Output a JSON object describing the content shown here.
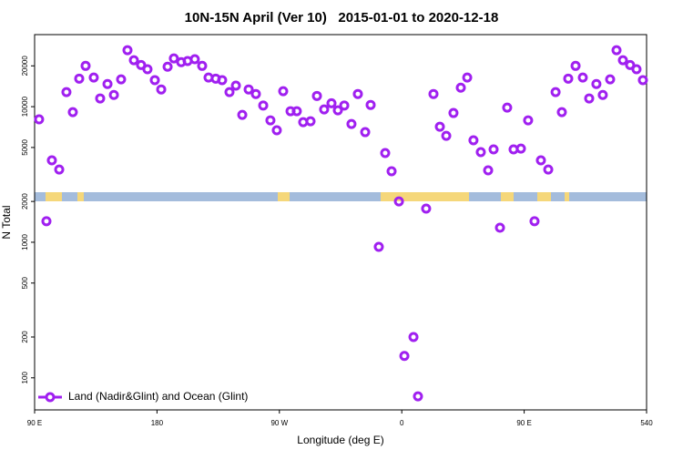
{
  "chart_data": {
    "type": "scatter",
    "title": "10N-15N April (Ver 10)   2015-01-01 to 2020-12-18",
    "x_label": "Longitude (deg E)",
    "y_label": "N Total",
    "ylog": true,
    "legend": "bottom-left",
    "xlim": [
      90,
      540
    ],
    "ylim": [
      58,
      34000
    ],
    "xticks": [
      {
        "value": 90,
        "label": "90 E"
      },
      180,
      {
        "value": 270,
        "label": "90 W"
      },
      {
        "value": 360,
        "label": "0"
      },
      {
        "value": 450,
        "label": "90 E"
      },
      540
    ],
    "yticks": [
      100,
      200,
      500,
      1000,
      2000,
      5000,
      10000,
      20000
    ],
    "x": [
      93.3,
      98.7,
      102.7,
      108.1,
      113.4,
      118.1,
      122.8,
      127.5,
      133.5,
      138.2,
      143.6,
      148.3,
      153.6,
      158.3,
      163,
      168.3,
      173,
      178.4,
      183.1,
      187.8,
      192.4,
      197.8,
      202.5,
      207.8,
      213.2,
      217.9,
      223.2,
      227.9,
      233.3,
      238,
      242.7,
      247.4,
      252.7,
      258.1,
      263.4,
      268.1,
      272.8,
      278.2,
      282.8,
      287.5,
      292.9,
      297.6,
      302.9,
      308.3,
      313,
      317.7,
      323,
      327.7,
      333.1,
      337.1,
      343.1,
      347.8,
      352.5,
      357.9,
      361.9,
      368.6,
      371.9,
      377.9,
      383.3,
      388,
      392.7,
      398,
      403.4,
      408.1,
      412.7,
      418.1,
      423.5,
      427.5,
      432.2,
      437.5,
      442.2,
      447.6,
      452.9,
      457.6,
      462.3,
      467.7,
      473.1,
      477.7,
      482.4,
      487.8,
      493.1,
      497.8,
      503.1,
      507.8,
      513.2,
      517.9,
      522.6,
      527.9,
      532.6,
      537.3
    ],
    "series": [
      {
        "name": "Land (Nadir&Glint) and Ocean (Glint)",
        "color": "#a020f0",
        "values": [
          8060,
          1430,
          4020,
          3440,
          12800,
          9110,
          16100,
          20000,
          16400,
          11500,
          14700,
          12200,
          15900,
          26100,
          22000,
          20300,
          18900,
          15700,
          13400,
          19700,
          22700,
          21300,
          21700,
          22400,
          20000,
          16400,
          16100,
          15700,
          12800,
          14300,
          8700,
          13400,
          12400,
          10200,
          7930,
          6700,
          13000,
          9260,
          9260,
          7690,
          7810,
          12000,
          9550,
          10600,
          9400,
          10200,
          7450,
          12400,
          6490,
          10300,
          925,
          4550,
          3340,
          2000,
          145,
          200,
          73,
          1770,
          12400,
          7110,
          6090,
          8980,
          13800,
          16400,
          5650,
          4620,
          3390,
          4840,
          1280,
          9850,
          4840,
          4910,
          7930,
          1430,
          4020,
          3440,
          12800,
          9110,
          16100,
          20000,
          16400,
          11500,
          14700,
          12200,
          15900,
          26100,
          22000,
          20300,
          18900,
          15700
        ]
      }
    ]
  }
}
